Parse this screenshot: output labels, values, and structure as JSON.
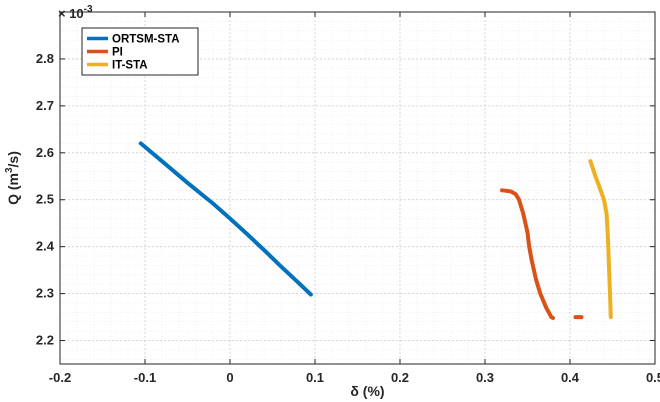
{
  "chart_data": {
    "type": "line",
    "title": "",
    "xlabel": "δ (%)",
    "ylabel": "Q (m³/s)",
    "ylabel_parts": {
      "main": "Q (m",
      "sup": "3",
      "end": "/s)"
    },
    "y_multiplier": {
      "base": "× 10",
      "exp": "-3"
    },
    "xlim": [
      -0.2,
      0.5
    ],
    "ylim": [
      2.15,
      2.9
    ],
    "x_ticks": [
      -0.2,
      -0.1,
      0,
      0.1,
      0.2,
      0.3,
      0.4,
      0.5
    ],
    "x_tick_labels": [
      "-0.2",
      "-0.1",
      "0",
      "0.1",
      "0.2",
      "0.3",
      "0.4",
      "0.5"
    ],
    "y_ticks": [
      2.2,
      2.3,
      2.4,
      2.5,
      2.6,
      2.7,
      2.8
    ],
    "y_tick_labels": [
      "2.2",
      "2.3",
      "2.4",
      "2.5",
      "2.6",
      "2.7",
      "2.8"
    ],
    "grid": true,
    "legend_position": "top-left",
    "series": [
      {
        "name": "ORTSM-STA",
        "color": "#0072BD",
        "x": [
          -0.105,
          -0.08,
          -0.05,
          -0.02,
          0.0,
          0.02,
          0.04,
          0.06,
          0.08,
          0.095
        ],
        "y": [
          2.62,
          2.582,
          2.536,
          2.492,
          2.46,
          2.427,
          2.393,
          2.358,
          2.324,
          2.298
        ]
      },
      {
        "name": "PI",
        "color": "#D95319",
        "x": [
          0.32,
          0.33,
          0.336,
          0.34,
          0.345,
          0.35,
          0.352,
          0.355,
          0.36,
          0.365,
          0.372,
          0.378,
          0.38
        ],
        "y": [
          2.52,
          2.518,
          2.512,
          2.5,
          2.47,
          2.43,
          2.4,
          2.37,
          2.33,
          2.3,
          2.27,
          2.25,
          2.248
        ]
      },
      {
        "name": "IT-STA",
        "color": "#EDB120",
        "x": [
          0.424,
          0.43,
          0.436,
          0.44,
          0.443,
          0.444,
          0.445,
          0.446,
          0.447,
          0.448
        ],
        "y": [
          2.582,
          2.55,
          2.52,
          2.5,
          2.47,
          2.44,
          2.4,
          2.35,
          2.3,
          2.25
        ]
      }
    ],
    "point_marks": [
      {
        "series": "PI",
        "x": 0.41,
        "y": 2.25,
        "color": "#D95319"
      }
    ]
  }
}
